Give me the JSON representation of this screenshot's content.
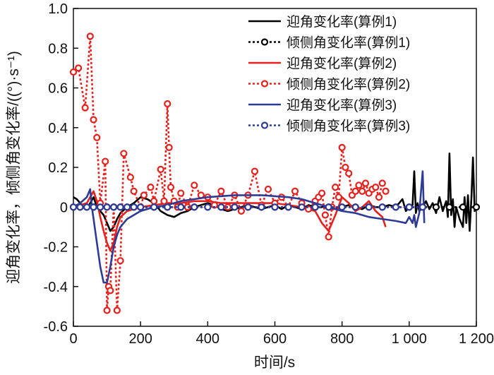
{
  "chart_data": {
    "type": "line",
    "xlabel": "时间/s",
    "ylabel": "迎角变化率，倾侧角变化率/((°)·s⁻¹)",
    "xlim": [
      0,
      1200
    ],
    "ylim": [
      -0.6,
      1.0
    ],
    "xticks": [
      0,
      200,
      400,
      600,
      800,
      1000,
      1200
    ],
    "xtick_labels": [
      "0",
      "200",
      "400",
      "600",
      "800",
      "1 000",
      "1 200"
    ],
    "yticks": [
      -0.6,
      -0.4,
      -0.2,
      0,
      0.2,
      0.4,
      0.6,
      0.8,
      1.0
    ],
    "ytick_labels": [
      "-0.6",
      "-0.4",
      "-0.2",
      "0",
      "0.2",
      "0.4",
      "0.6",
      "0.8",
      "1.0"
    ],
    "legend_position": "top-right",
    "series": [
      {
        "name": "迎角变化率(算例1)",
        "color": "#000000",
        "dash": "solid",
        "marker": "none",
        "x": [
          0,
          10,
          20,
          30,
          40,
          50,
          60,
          70,
          80,
          90,
          100,
          110,
          120,
          130,
          140,
          160,
          180,
          200,
          220,
          240,
          260,
          280,
          300,
          320,
          340,
          360,
          380,
          400,
          420,
          440,
          460,
          480,
          500,
          520,
          540,
          560,
          580,
          600,
          620,
          640,
          660,
          680,
          700,
          720,
          740,
          760,
          780,
          800,
          820,
          840,
          860,
          880,
          900,
          920,
          940,
          960,
          980,
          990,
          1000,
          1010,
          1015,
          1020,
          1025,
          1030,
          1040,
          1050,
          1060,
          1070,
          1080,
          1090,
          1100,
          1110,
          1115,
          1120,
          1125,
          1130,
          1135,
          1140,
          1150,
          1160,
          1165,
          1170,
          1175,
          1180,
          1185,
          1190,
          1195,
          1200
        ],
        "y": [
          0.05,
          0.04,
          0.02,
          0.0,
          -0.01,
          0.02,
          0.05,
          0.0,
          -0.02,
          -0.04,
          -0.08,
          -0.12,
          -0.1,
          -0.06,
          -0.03,
          0.0,
          0.02,
          0.05,
          0.04,
          0.02,
          -0.02,
          -0.04,
          -0.05,
          -0.03,
          -0.02,
          0.0,
          0.01,
          0.02,
          0.01,
          -0.01,
          -0.02,
          -0.01,
          0.0,
          0.01,
          0.0,
          -0.01,
          0.0,
          0.01,
          -0.01,
          0.01,
          0.0,
          -0.01,
          0.01,
          0.0,
          0.0,
          0.01,
          -0.01,
          0.0,
          0.01,
          0.0,
          -0.01,
          0.01,
          0.0,
          0.0,
          0.01,
          0.0,
          0.04,
          -0.02,
          0.0,
          0.01,
          0.18,
          -0.03,
          0.02,
          -0.02,
          0.0,
          0.03,
          -0.01,
          0.02,
          -0.03,
          0.05,
          -0.02,
          0.03,
          -0.05,
          0.27,
          -0.04,
          0.04,
          -0.1,
          0.0,
          -0.06,
          -0.1,
          0.05,
          -0.08,
          0.06,
          -0.12,
          0.04,
          0.25,
          -0.02,
          0.0
        ]
      },
      {
        "name": "倾侧角变化率(算例1)",
        "color": "#000000",
        "dash": "dotted",
        "marker": "circle",
        "x": [
          0,
          20,
          40,
          60,
          80,
          100,
          120,
          140,
          160,
          180,
          200,
          240,
          280,
          320,
          360,
          400,
          440,
          480,
          520,
          560,
          600,
          640,
          680,
          720,
          760,
          800,
          840,
          880,
          920,
          960,
          1000,
          1040,
          1080,
          1120,
          1160,
          1200
        ],
        "y": [
          0,
          0,
          0,
          0,
          0,
          0,
          0,
          0,
          0,
          0,
          0,
          0,
          0,
          0,
          0,
          0,
          0,
          0,
          0,
          0,
          0,
          0,
          0,
          0,
          0,
          0,
          0,
          0,
          0,
          0,
          0,
          0,
          0,
          0,
          0,
          0
        ]
      },
      {
        "name": "迎角变化率(算例2)",
        "color": "#e8201c",
        "dash": "solid",
        "marker": "none",
        "x": [
          0,
          20,
          40,
          50,
          60,
          70,
          80,
          90,
          100,
          110,
          120,
          130,
          140,
          160,
          200,
          240,
          280,
          320,
          360,
          400,
          440,
          480,
          520,
          560,
          600,
          640,
          680,
          720,
          740,
          760,
          780,
          800,
          820,
          840,
          860,
          880,
          900,
          920,
          930
        ],
        "y": [
          0.0,
          0.01,
          0.02,
          0.05,
          0.08,
          0.03,
          -0.05,
          -0.12,
          -0.18,
          -0.22,
          -0.18,
          -0.1,
          -0.05,
          -0.02,
          0.0,
          0.01,
          0.02,
          0.02,
          0.03,
          0.03,
          0.02,
          0.02,
          0.02,
          0.02,
          0.02,
          0.01,
          0.0,
          -0.02,
          -0.08,
          -0.12,
          -0.04,
          0.05,
          0.02,
          -0.02,
          0.0,
          0.03,
          -0.02,
          -0.05,
          -0.1
        ]
      },
      {
        "name": "倾侧角变化率(算例2)",
        "color": "#e8201c",
        "dash": "dotted",
        "marker": "circle",
        "x": [
          0,
          15,
          35,
          50,
          60,
          70,
          80,
          95,
          100,
          105,
          110,
          120,
          130,
          140,
          150,
          170,
          180,
          200,
          210,
          230,
          240,
          260,
          270,
          280,
          285,
          290,
          300,
          310,
          320,
          340,
          360,
          380,
          400,
          420,
          440,
          460,
          480,
          500,
          520,
          540,
          560,
          580,
          600,
          620,
          640,
          660,
          680,
          700,
          720,
          730,
          740,
          750,
          760,
          770,
          780,
          790,
          800,
          810,
          820,
          830,
          840,
          850,
          860,
          870,
          880,
          890,
          900,
          910,
          920,
          930
        ],
        "y": [
          0.68,
          0.7,
          0.5,
          0.86,
          0.44,
          0.35,
          0.02,
          0.23,
          -0.52,
          -0.4,
          -0.42,
          0.0,
          -0.52,
          -0.27,
          0.27,
          0.15,
          0.08,
          0.0,
          0.06,
          0.1,
          0.03,
          0.19,
          0.03,
          0.52,
          0.3,
          0.1,
          0.03,
          0.0,
          0.07,
          0.0,
          0.11,
          0.06,
          0.05,
          0.01,
          0.08,
          0.0,
          0.06,
          -0.02,
          0.06,
          0.18,
          0.01,
          0.09,
          0.02,
          0.05,
          0.0,
          0.08,
          0.02,
          -0.01,
          0.03,
          0.05,
          0.07,
          -0.04,
          -0.15,
          0.0,
          0.1,
          0.05,
          0.3,
          0.2,
          0.17,
          0.06,
          0.08,
          0.11,
          0.08,
          0.12,
          0.07,
          0.09,
          0.1,
          0.05,
          0.12,
          0.08
        ]
      },
      {
        "name": "迎角变化率(算例3)",
        "color": "#2e3b96",
        "dash": "solid",
        "marker": "none",
        "x": [
          0,
          20,
          40,
          50,
          55,
          60,
          70,
          80,
          90,
          100,
          110,
          120,
          130,
          140,
          160,
          180,
          200,
          240,
          280,
          320,
          360,
          400,
          440,
          480,
          520,
          560,
          600,
          640,
          680,
          720,
          760,
          800,
          840,
          880,
          920,
          960,
          990,
          1000,
          1010,
          1015,
          1020,
          1030,
          1040,
          1045
        ],
        "y": [
          0.0,
          0.02,
          0.05,
          0.09,
          0.0,
          -0.06,
          -0.18,
          -0.3,
          -0.38,
          -0.38,
          -0.3,
          -0.2,
          -0.14,
          -0.1,
          -0.06,
          -0.04,
          -0.02,
          0.0,
          0.01,
          0.03,
          0.04,
          0.05,
          0.055,
          0.06,
          0.06,
          0.06,
          0.055,
          0.05,
          0.04,
          0.02,
          0.0,
          -0.02,
          -0.03,
          -0.05,
          -0.06,
          -0.07,
          -0.08,
          -0.05,
          -0.08,
          -0.04,
          -0.1,
          -0.03,
          0.18,
          -0.08
        ]
      },
      {
        "name": "倾侧角变化率(算例3)",
        "color": "#2e3b96",
        "dash": "dotted",
        "marker": "circle",
        "x": [
          0,
          20,
          40,
          60,
          80,
          100,
          120,
          140,
          160,
          180,
          200,
          240,
          280,
          320,
          360,
          400,
          440,
          480,
          520,
          560,
          600,
          640,
          680,
          720,
          760,
          800,
          840,
          880,
          920,
          960,
          1000,
          1040
        ],
        "y": [
          0,
          0,
          0,
          0,
          0,
          0,
          0,
          0,
          0,
          0,
          0,
          0,
          0,
          0,
          0,
          0,
          0,
          0,
          0,
          0,
          0,
          0,
          0,
          0,
          0,
          0,
          0,
          0,
          0,
          0,
          0,
          0
        ]
      }
    ]
  }
}
